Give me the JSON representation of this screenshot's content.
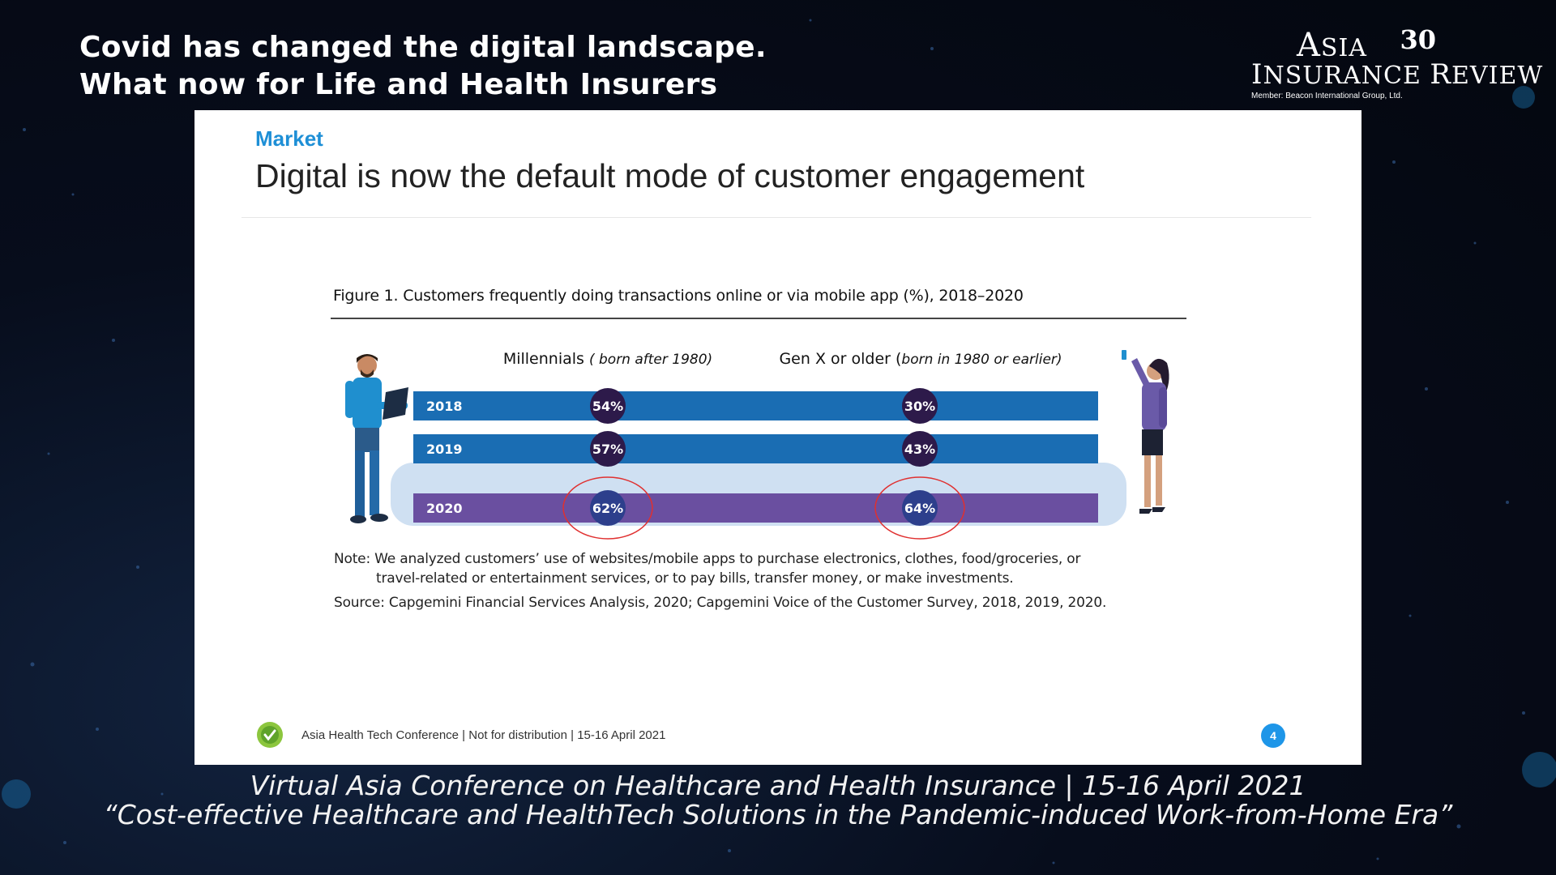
{
  "slide_title_line1": "Covid has changed the digital landscape.",
  "slide_title_line2": "What now for Life and Health Insurers",
  "logo": {
    "name_part1": "A",
    "name_part2": "SIA",
    "name_part3": "I",
    "name_part4": "NSURANCE ",
    "name_part5": "R",
    "name_part6": "EVIEW",
    "anniversary": "30",
    "member": "Member: Beacon International Group, Ltd."
  },
  "slide": {
    "section": "Market",
    "headline": "Digital is now the default mode of customer engagement"
  },
  "chart_data": {
    "type": "bar",
    "title": "Figure 1. Customers frequently doing transactions online or via mobile app (%), 2018–2020",
    "groups": [
      {
        "name": "Millennials",
        "qualifier": "( born after 1980)"
      },
      {
        "name": "Gen X or older (",
        "qualifier": "born in 1980 or earlier)"
      }
    ],
    "categories": [
      "2018",
      "2019",
      "2020"
    ],
    "series": [
      {
        "name": "Millennials",
        "values": [
          54,
          57,
          62
        ]
      },
      {
        "name": "Gen X or older",
        "values": [
          30,
          43,
          64
        ]
      }
    ],
    "value_labels": {
      "millennials": [
        "54%",
        "57%",
        "62%"
      ],
      "genx": [
        "30%",
        "43%",
        "64%"
      ]
    },
    "highlight": "2020",
    "colors": {
      "bar_2018_2019": "#1a6db3",
      "bar_2020": "#6a4fa0",
      "highlight_band": "#cfe0f2",
      "badge": "#2d1a4a",
      "badge_2020": "#2d3f8c",
      "circle": "#e03030"
    }
  },
  "note_line1": "Note: We analyzed customers’ use of websites/mobile apps to purchase electronics, clothes, food/groceries, or",
  "note_line2": "travel-related or entertainment services, or to pay bills, transfer money, or make investments.",
  "source": "Source: Capgemini Financial Services Analysis, 2020; Capgemini Voice of the Customer Survey, 2018, 2019, 2020.",
  "footer": {
    "text": "Asia Health Tech Conference | Not for distribution | 15-16 April 2021",
    "page": "4"
  },
  "caption_line1": "Virtual Asia Conference on Healthcare and Health Insurance |  15-16 April 2021",
  "caption_line2": "“Cost-effective Healthcare and HealthTech Solutions in the Pandemic-induced Work-from-Home Era”"
}
